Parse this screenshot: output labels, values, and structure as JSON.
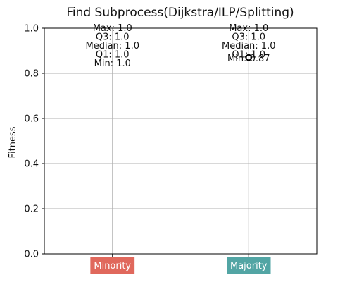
{
  "chart_data": {
    "type": "box",
    "title": "Find Subprocess(Dijkstra/ILP/Splitting)",
    "xlabel": "",
    "ylabel": "Fitness",
    "ylim": [
      0.0,
      1.0
    ],
    "yticks": [
      0.0,
      0.2,
      0.4,
      0.6,
      0.8,
      1.0
    ],
    "ytick_labels": [
      "0.0",
      "0.2",
      "0.4",
      "0.6",
      "0.8",
      "1.0"
    ],
    "grid": true,
    "categories": [
      "Minority",
      "Majority"
    ],
    "category_colors": [
      "#e0685c",
      "#52a5a4"
    ],
    "boxes": [
      {
        "category": "Minority",
        "max": 1.0,
        "q3": 1.0,
        "median": 1.0,
        "q1": 1.0,
        "min": 1.0,
        "outliers": [],
        "labels": [
          "Max: 1.0",
          "Q3: 1.0",
          "Median: 1.0",
          "Q1: 1.0",
          "Min: 1.0"
        ]
      },
      {
        "category": "Majority",
        "max": 1.0,
        "q3": 1.0,
        "median": 1.0,
        "q1": 1.0,
        "min": 0.87,
        "outliers": [
          0.87
        ],
        "labels": [
          "Max: 1.0",
          "Q3: 1.0",
          "Median: 1.0",
          "Q1: 1.0",
          "Min: 0.87"
        ]
      }
    ]
  }
}
